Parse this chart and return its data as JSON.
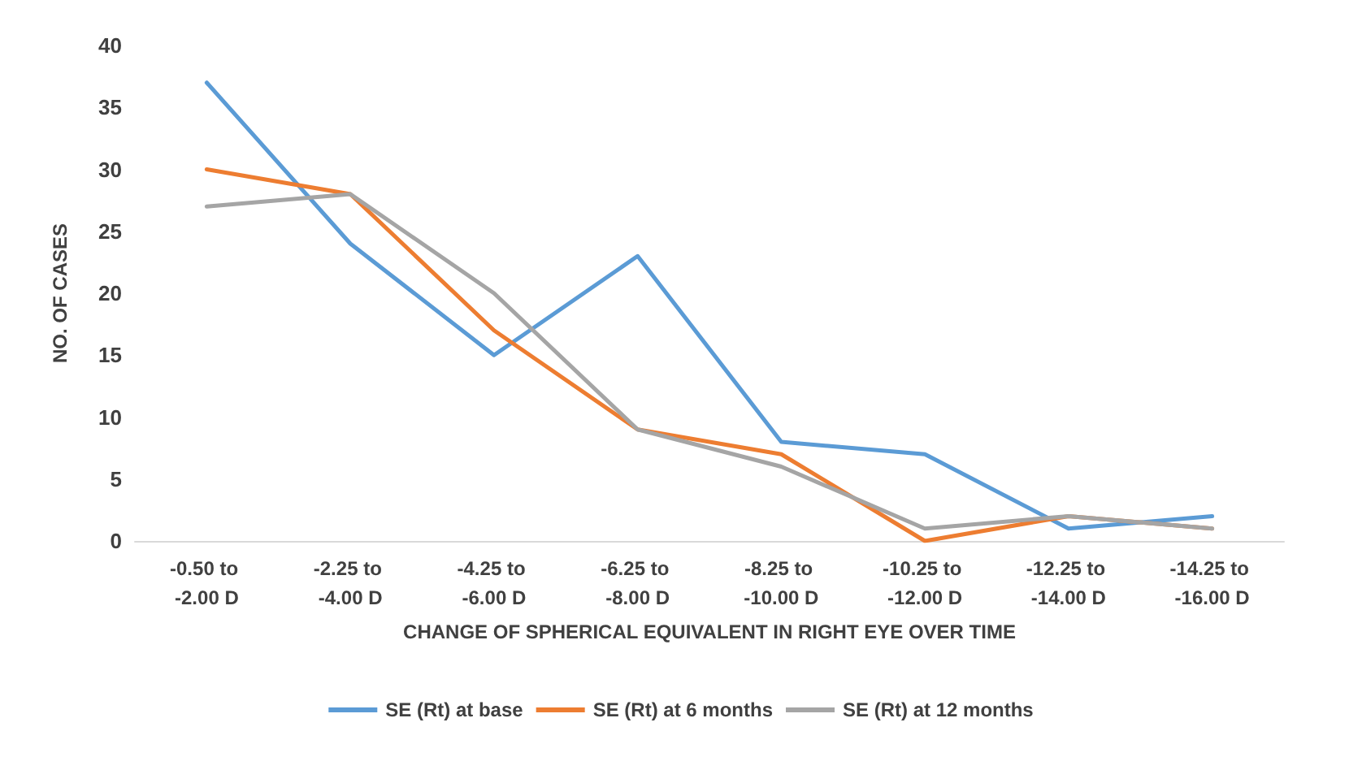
{
  "chart_data": {
    "type": "line",
    "xlabel": "CHANGE OF SPHERICAL EQUIVALENT IN RIGHT EYE OVER TIME",
    "ylabel": "NO. OF CASES",
    "categories": [
      "-0.50 to -2.00 D",
      "-2.25 to -4.00 D",
      "-4.25 to -6.00 D",
      "-6.25 to -8.00 D",
      "-8.25 to -10.00 D",
      "-10.25 to -12.00 D",
      "-12.25 to -14.00 D",
      "-14.25 to -16.00 D"
    ],
    "series": [
      {
        "name": "SE (Rt) at base",
        "color": "#5b9bd5",
        "values": [
          37,
          24,
          15,
          23,
          8,
          7,
          1,
          2
        ]
      },
      {
        "name": "SE (Rt) at 6 months",
        "color": "#ed7d31",
        "values": [
          30,
          28,
          17,
          9,
          7,
          0,
          2,
          1
        ]
      },
      {
        "name": "SE (Rt) at 12 months",
        "color": "#a5a5a5",
        "values": [
          27,
          28,
          20,
          9,
          6,
          1,
          2,
          1
        ]
      }
    ],
    "ylim": [
      0,
      40
    ],
    "yticks": [
      0,
      5,
      10,
      15,
      20,
      25,
      30,
      35,
      40
    ],
    "grid": false,
    "legend": "bottom",
    "marker": "none",
    "line_style": "solid"
  }
}
